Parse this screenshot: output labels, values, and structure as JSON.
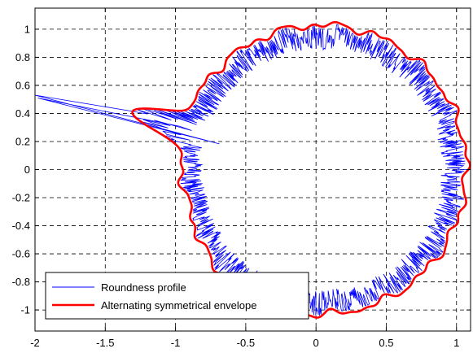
{
  "chart_data": {
    "type": "line",
    "title": "",
    "xlabel": "",
    "ylabel": "",
    "xlim": [
      -2,
      1.1
    ],
    "ylim": [
      -1.15,
      1.15
    ],
    "xticks": [
      -2,
      -1.5,
      -1,
      -0.5,
      0,
      0.5,
      1
    ],
    "yticks": [
      -1,
      -0.8,
      -0.6,
      -0.4,
      -0.2,
      0,
      0.2,
      0.4,
      0.6,
      0.8,
      1
    ],
    "xtick_labels": [
      "-2",
      "-1.5",
      "-1",
      "-0.5",
      "0",
      "0.5",
      "1"
    ],
    "ytick_labels": [
      "-1",
      "-0.8",
      "-0.6",
      "-0.4",
      "-0.2",
      "0",
      "0.2",
      "0.4",
      "0.6",
      "0.8",
      "1"
    ],
    "grid": true,
    "legend_position": "bottom-left",
    "shape": {
      "center": [
        0.04,
        0
      ],
      "outer_radius_approx": 1.03,
      "inner_radius_approx": 0.8,
      "defect_tip": [
        -2.0,
        0.53
      ],
      "defect_angle_deg": 163
    },
    "series": [
      {
        "name": "Roundness profile",
        "color": "#0000ff",
        "line_width": 0.8,
        "description_values": "noisy radial profile between inner and outer radius, with an outlier spike reaching x=-2, y=0.53"
      },
      {
        "name": "Alternating symmetrical envelope",
        "color": "#ff0000",
        "line_width": 2.6,
        "description_values": "smooth envelope around the profile, outer radius ~1.03, bump near x=-1.3, y=0.38"
      }
    ]
  }
}
